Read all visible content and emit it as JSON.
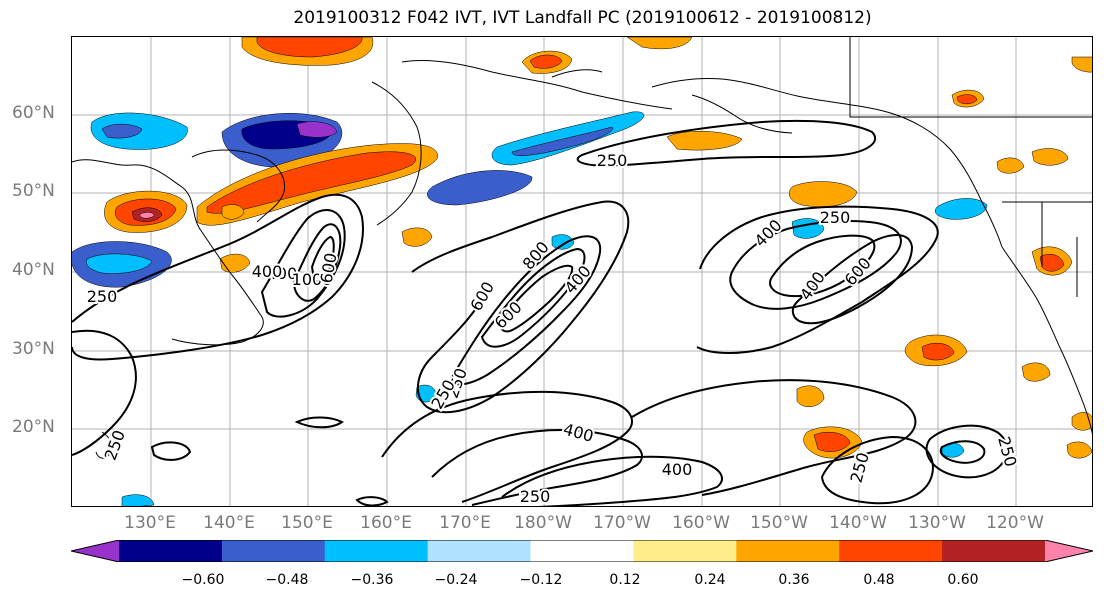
{
  "title": "2019100312 F042 IVT, IVT Landfall PC (2019100612 - 2019100812)",
  "lat_labels": [
    "60°N",
    "50°N",
    "40°N",
    "30°N",
    "20°N"
  ],
  "lon_labels": [
    "130°E",
    "140°E",
    "150°E",
    "160°E",
    "170°E",
    "180°W",
    "170°W",
    "160°W",
    "150°W",
    "140°W",
    "130°W",
    "120°W"
  ],
  "contour_labels": [
    "250",
    "250",
    "400",
    "600",
    "800",
    "400",
    "600",
    "400",
    "600",
    "400",
    "250",
    "250",
    "400",
    "400",
    "250",
    "250",
    "250",
    "250",
    "400",
    "1000",
    "600",
    "250"
  ],
  "colorbar": {
    "colors": [
      "#9932cc",
      "#00008b",
      "#3a5fcd",
      "#00bfff",
      "#b0e2ff",
      "#ffffff",
      "#ffec8b",
      "#ffa500",
      "#ff4500",
      "#b22222",
      "#ff82ab"
    ],
    "tick_labels": [
      "−0.60",
      "−0.48",
      "−0.36",
      "−0.24",
      "−0.12",
      "0.12",
      "0.24",
      "0.36",
      "0.48",
      "0.60"
    ]
  },
  "colors": {
    "negative_strong": "#00008b",
    "negative_mid": "#3a5fcd",
    "negative_light": "#00bfff",
    "positive_light": "#ffa500",
    "positive_strong": "#ff4500",
    "contour": "#000000",
    "axis_label": "#7a7a7a"
  }
}
